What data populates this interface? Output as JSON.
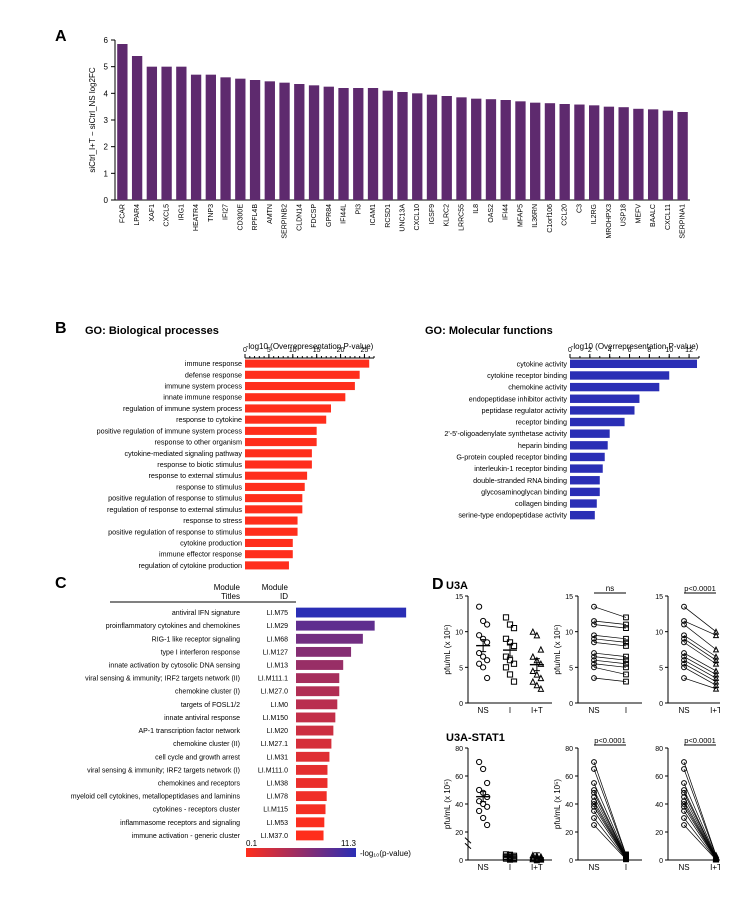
{
  "panelA": {
    "label": "A",
    "ylabel": "siCtrl_I+T − siCtrl_NS log2FC",
    "ylim": [
      0,
      6
    ],
    "ytick_step": 1,
    "bar_color": "#5e2a6e",
    "background": "#ffffff",
    "categories": [
      "FCAR",
      "LPAR4",
      "XAF1",
      "CXCL5",
      "IRG1",
      "HEATR4",
      "TNP3",
      "IFI27",
      "CD300E",
      "RPFL4B",
      "AMTN",
      "SERPINB2",
      "CLDN14",
      "FDCSP",
      "GPR84",
      "IFI44L",
      "PI3",
      "ICAM1",
      "RCSD1",
      "UNC13A",
      "CXCL10",
      "IGSF9",
      "KLRC2",
      "LRRC55",
      "IL8",
      "OAS2",
      "IFI44",
      "MFAP5",
      "IL36RN",
      "C1orf106",
      "CCL20",
      "C3",
      "IL2RG",
      "MROHPX3",
      "USP18",
      "MEFV",
      "BAALC",
      "CXCL11",
      "SERPINA1"
    ],
    "values": [
      5.85,
      5.4,
      5.0,
      5.0,
      5.0,
      4.7,
      4.7,
      4.6,
      4.55,
      4.5,
      4.45,
      4.4,
      4.35,
      4.3,
      4.25,
      4.2,
      4.2,
      4.2,
      4.1,
      4.05,
      4.0,
      3.95,
      3.9,
      3.85,
      3.8,
      3.78,
      3.75,
      3.7,
      3.65,
      3.63,
      3.6,
      3.58,
      3.55,
      3.5,
      3.48,
      3.42,
      3.4,
      3.35,
      3.3
    ],
    "label_fontsize": 7
  },
  "panelB": {
    "label": "B",
    "bp": {
      "title": "GO: Biological processes",
      "xlabel": "-log10 (Overrepresentation P-value)",
      "xlim": [
        0,
        27
      ],
      "xtick_step": 5,
      "xticks_minor": 1,
      "bar_color": "#ff2e1c",
      "terms": [
        "immune response",
        "defense response",
        "immune system process",
        "innate immune response",
        "regulation of immune system process",
        "response to cytokine",
        "positive regulation of immune system process",
        "response to other organism",
        "cytokine-mediated signaling pathway",
        "response to biotic stimulus",
        "response to external stimulus",
        "response to stimulus",
        "positive regulation of response to stimulus",
        "regulation of response to external stimulus",
        "response to stress",
        "positive regulation of response to stimulus",
        "cytokine production",
        "immune effector response",
        "regulation of cytokine production"
      ],
      "values": [
        26,
        24,
        23,
        21,
        18,
        17,
        15,
        15,
        14,
        14,
        13,
        12.5,
        12,
        12,
        11,
        11,
        10,
        10,
        9.2
      ]
    },
    "mf": {
      "title": "GO: Molecular functions",
      "xlabel": "-log10 (Overrepresentation P-value)",
      "xlim": [
        0,
        13
      ],
      "xtick_step": 2,
      "xticks_minor": 1,
      "bar_color": "#2a2eb5",
      "terms": [
        "cytokine activity",
        "cytokine receptor binding",
        "chemokine activity",
        "endopeptidase inhibitor activity",
        "peptidase regulator activity",
        "receptor binding",
        "2'-5'-oligoadenylate synthetase activity",
        "heparin binding",
        "G-protein coupled receptor binding",
        "interleukin-1 receptor binding",
        "double-stranded RNA binding",
        "glycosaminoglycan binding",
        "collagen binding",
        "serine-type endopeptidase activity"
      ],
      "values": [
        12.8,
        10,
        9,
        7,
        6.5,
        5.5,
        4,
        3.8,
        3.5,
        3.3,
        3,
        3,
        2.7,
        2.5
      ]
    }
  },
  "panelC": {
    "label": "C",
    "header_titles": "Module\nTitles",
    "header_id": "Module\nID",
    "legend_label": "-log₁₀(p-value)",
    "legend_min": "0.1",
    "legend_max": "11.3",
    "gradient_from": "#ff2e1c",
    "gradient_to": "#2a2eb5",
    "xlim": [
      0,
      30
    ],
    "rows": [
      {
        "title": "antiviral IFN signature",
        "id": "LI.M75",
        "val": 28,
        "p": 11.3
      },
      {
        "title": "proinflammatory cytokines and chemokines",
        "id": "LI.M29",
        "val": 20,
        "p": 8.5
      },
      {
        "title": "RIG-1 like receptor signaling",
        "id": "LI.M68",
        "val": 17,
        "p": 7.5
      },
      {
        "title": "type I interferon response",
        "id": "LI.M127",
        "val": 14,
        "p": 6.5
      },
      {
        "title": "innate activation by cytosolic DNA sensing",
        "id": "LI.M13",
        "val": 12,
        "p": 5.5
      },
      {
        "title": "viral sensing & immunity; IRF2 targets network (II)",
        "id": "LI.M111.1",
        "val": 11,
        "p": 4.8
      },
      {
        "title": "chemokine cluster (I)",
        "id": "LI.M27.0",
        "val": 11,
        "p": 4.2
      },
      {
        "title": "targets of FOSL1/2",
        "id": "LI.M0",
        "val": 10.5,
        "p": 3.8
      },
      {
        "title": "innate antiviral response",
        "id": "LI.M150",
        "val": 10,
        "p": 3.3
      },
      {
        "title": "AP-1 transcription factor network",
        "id": "LI.M20",
        "val": 9.5,
        "p": 2.8
      },
      {
        "title": "chemokine cluster (II)",
        "id": "LI.M27.1",
        "val": 9,
        "p": 2.3
      },
      {
        "title": "cell cycle and growth arrest",
        "id": "LI.M31",
        "val": 8.5,
        "p": 1.8
      },
      {
        "title": "viral sensing & immunity; IRF2 targets network (I)",
        "id": "LI.M111.0",
        "val": 8,
        "p": 1.5
      },
      {
        "title": "chemokines and receptors",
        "id": "LI.M38",
        "val": 8,
        "p": 1.2
      },
      {
        "title": "myeloid cell cytokines, metallopeptidases and laminins",
        "id": "LI.M78",
        "val": 7.8,
        "p": 0.9
      },
      {
        "title": "cytokines - receptors cluster",
        "id": "LI.M115",
        "val": 7.5,
        "p": 0.6
      },
      {
        "title": "inflammasome receptors and signaling",
        "id": "LI.M53",
        "val": 7.2,
        "p": 0.3
      },
      {
        "title": "immune activation - generic cluster",
        "id": "LI.M37.0",
        "val": 7,
        "p": 0.1
      }
    ]
  },
  "panelD": {
    "label": "D",
    "u3a": {
      "title": "U3A",
      "ylabel": "pfu/mL (x 10⁵)",
      "ylim": [
        0,
        15
      ],
      "ytick_step": 5,
      "groups": [
        "NS",
        "I",
        "I+T"
      ],
      "markers": [
        "circle",
        "square",
        "triangle"
      ],
      "ns": "ns",
      "p": "p<0.0001",
      "data": {
        "NS": [
          13.5,
          11.5,
          11,
          9.5,
          9,
          8.5,
          7,
          6.5,
          6,
          5.5,
          5,
          3.5
        ],
        "I": [
          12,
          11,
          10.5,
          9,
          8.5,
          8,
          6.5,
          6,
          5.5,
          5,
          4,
          3
        ],
        "IT": [
          10,
          9.5,
          7.5,
          6.5,
          6,
          5.5,
          4.5,
          4,
          3.5,
          3,
          2.5,
          2
        ]
      }
    },
    "u3a_stat1": {
      "title": "U3A-STAT1",
      "ylabel": "pfu/mL (x 10⁵)",
      "ylim_left": [
        0,
        80
      ],
      "ytick_left": 20,
      "ylim_right": [
        0,
        80
      ],
      "ytick_right": 20,
      "groups": [
        "NS",
        "I",
        "I+T"
      ],
      "markers": [
        "circle",
        "square",
        "triangle"
      ],
      "p": "p<0.0001",
      "data": {
        "NS": [
          70,
          65,
          55,
          50,
          48,
          45,
          42,
          40,
          38,
          35,
          30,
          25
        ],
        "I": [
          4,
          3.5,
          3,
          2.5,
          2.2,
          2,
          1.8,
          1.5,
          1.2,
          1,
          0.8,
          0.5
        ],
        "IT": [
          3.5,
          3,
          2.5,
          2,
          1.8,
          1.5,
          1.3,
          1,
          0.8,
          0.6,
          0.4,
          0.3
        ]
      }
    }
  }
}
